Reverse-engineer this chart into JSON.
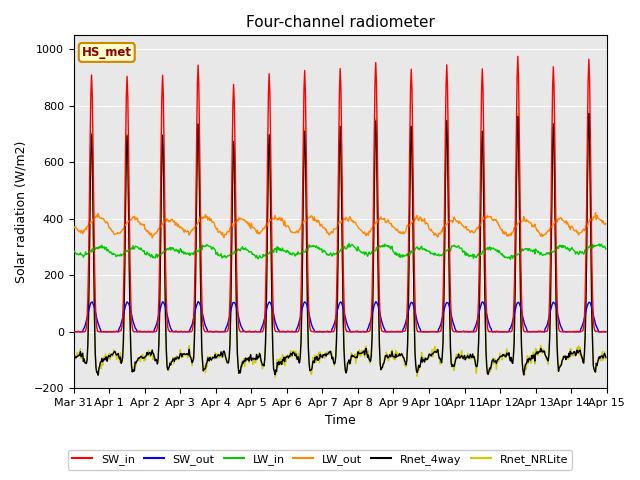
{
  "title": "Four-channel radiometer",
  "xlabel": "Time",
  "ylabel": "Solar radiation (W/m2)",
  "ylim": [
    -200,
    1050
  ],
  "yticks": [
    -200,
    0,
    200,
    400,
    600,
    800,
    1000
  ],
  "fig_bg_color": "#ffffff",
  "plot_bg_color": "#e8e8e8",
  "legend_label": "HS_met",
  "series": {
    "SW_in": {
      "color": "#ff0000",
      "lw": 1.0
    },
    "SW_out": {
      "color": "#0000ff",
      "lw": 1.0
    },
    "LW_in": {
      "color": "#00cc00",
      "lw": 1.0
    },
    "LW_out": {
      "color": "#ff8800",
      "lw": 1.0
    },
    "Rnet_4way": {
      "color": "#000000",
      "lw": 1.0
    },
    "Rnet_NRLite": {
      "color": "#cccc00",
      "lw": 1.0
    }
  },
  "n_days": 15,
  "dt_minutes": 30,
  "xticklabels": [
    "Mar 31",
    "Apr 1",
    "Apr 2",
    "Apr 3",
    "Apr 4",
    "Apr 5",
    "Apr 6",
    "Apr 7",
    "Apr 8",
    "Apr 9",
    "Apr 10",
    "Apr 11",
    "Apr 12",
    "Apr 13",
    "Apr 14",
    "Apr 15"
  ],
  "xtick_positions": [
    0,
    1,
    2,
    3,
    4,
    5,
    6,
    7,
    8,
    9,
    10,
    11,
    12,
    13,
    14,
    15
  ],
  "SW_in_peaks": [
    910,
    905,
    910,
    945,
    875,
    915,
    925,
    930,
    955,
    930,
    945,
    930,
    975,
    940,
    965
  ],
  "gridcolor": "#ffffff"
}
